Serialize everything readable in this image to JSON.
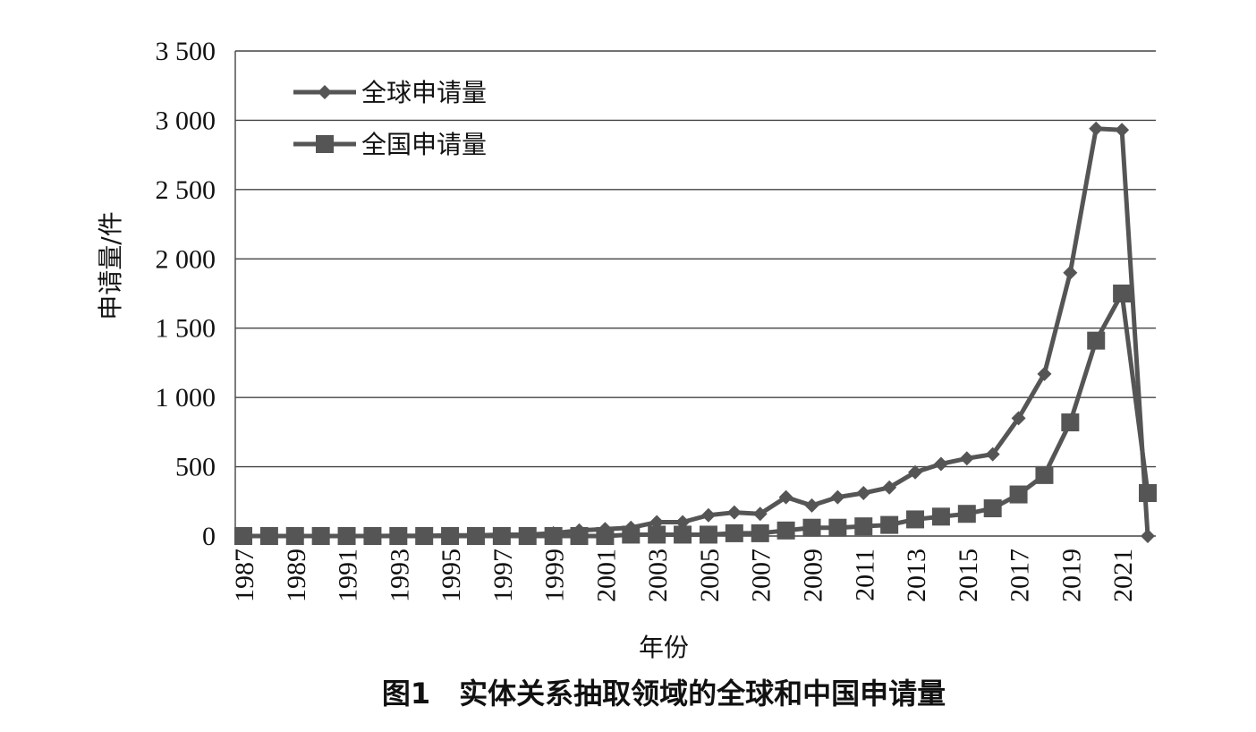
{
  "chart_data": {
    "type": "line",
    "caption": "图1　实体关系抽取领域的全球和中国申请量",
    "xlabel": "年份",
    "ylabel": "申请量/件",
    "ylim": [
      0,
      3500
    ],
    "yticks": [
      0,
      500,
      1000,
      1500,
      2000,
      2500,
      3000,
      3500
    ],
    "ytick_labels": [
      "0",
      "500",
      "1 000",
      "1 500",
      "2 000",
      "2 500",
      "3 000",
      "3 500"
    ],
    "x": [
      1987,
      1988,
      1989,
      1990,
      1991,
      1992,
      1993,
      1994,
      1995,
      1996,
      1997,
      1998,
      1999,
      2000,
      2001,
      2002,
      2003,
      2004,
      2005,
      2006,
      2007,
      2008,
      2009,
      2010,
      2011,
      2012,
      2013,
      2014,
      2015,
      2016,
      2017,
      2018,
      2019,
      2020,
      2021,
      2022
    ],
    "xtick_labels": [
      "1987",
      "1989",
      "1991",
      "1993",
      "1995",
      "1997",
      "1999",
      "2001",
      "2003",
      "2005",
      "2007",
      "2009",
      "2011",
      "2013",
      "2015",
      "2017",
      "2019",
      "2021"
    ],
    "grid": true,
    "legend_position": "top-left",
    "series": [
      {
        "name": "全球申请量",
        "marker": "diamond",
        "color": "#555555",
        "values": [
          0,
          0,
          0,
          0,
          0,
          0,
          2,
          2,
          5,
          5,
          10,
          10,
          20,
          40,
          50,
          60,
          100,
          100,
          150,
          170,
          160,
          280,
          220,
          280,
          310,
          350,
          460,
          520,
          560,
          590,
          850,
          1170,
          1900,
          2940,
          2930,
          0
        ]
      },
      {
        "name": "全国申请量",
        "marker": "square",
        "color": "#555555",
        "values": [
          0,
          0,
          0,
          0,
          0,
          0,
          0,
          0,
          0,
          0,
          0,
          0,
          0,
          0,
          0,
          10,
          10,
          10,
          10,
          20,
          20,
          40,
          60,
          60,
          70,
          80,
          120,
          140,
          160,
          200,
          300,
          440,
          820,
          1410,
          1750,
          310
        ]
      }
    ]
  }
}
